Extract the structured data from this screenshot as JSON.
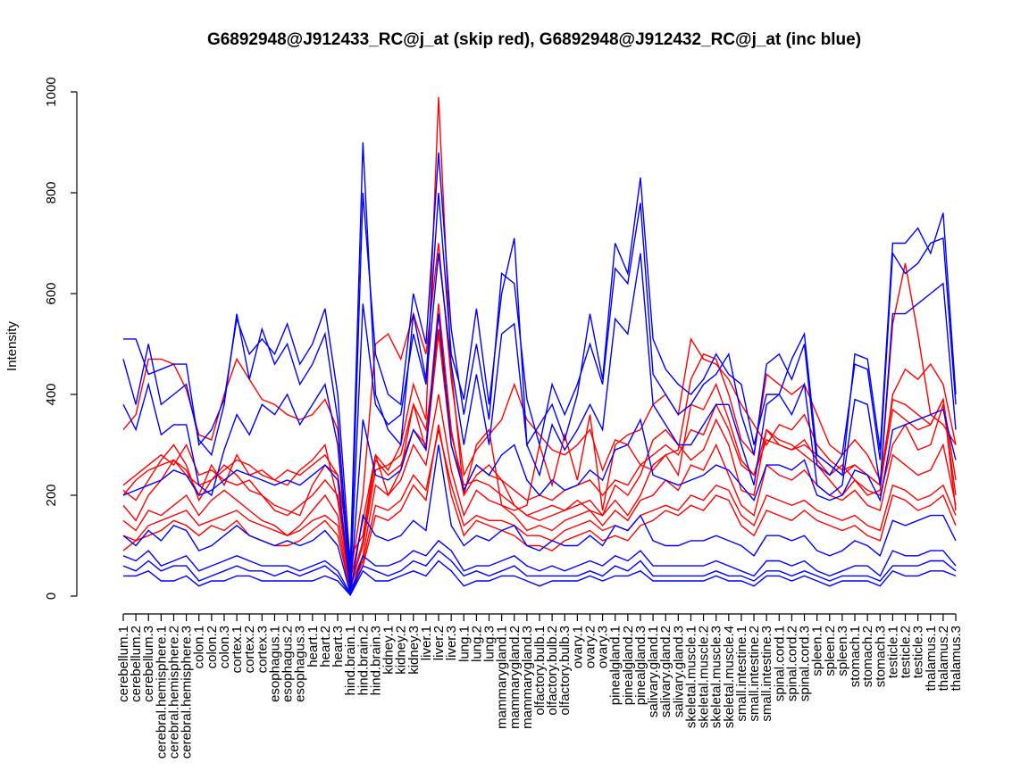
{
  "chart_data": {
    "type": "line",
    "title": "G6892948@J912433_RC@j_at (skip red), G6892948@J912432_RC@j_at (inc blue)",
    "xlabel": "",
    "ylabel": "Intensity",
    "ylim": [
      0,
      1000
    ],
    "yticks": [
      0,
      200,
      400,
      600,
      800,
      1000
    ],
    "grid": false,
    "legend": "none",
    "colors": {
      "skip": "#ff0000",
      "inc": "#0000ff",
      "axis": "#000000"
    },
    "categories": [
      "cerebellum.1",
      "cerebellum.2",
      "cerebellum.3",
      "cerebral.hemisphere.1",
      "cerebral.hemisphere.2",
      "cerebral.hemisphere.3",
      "colon.1",
      "colon.2",
      "colon.3",
      "cortex.1",
      "cortex.2",
      "cortex.3",
      "esophagus.1",
      "esophagus.2",
      "esophagus.3",
      "heart.1",
      "heart.2",
      "heart.3",
      "hind.brain.1",
      "hind.brain.2",
      "hind.brain.3",
      "kidney.1",
      "kidney.2",
      "kidney.3",
      "liver.1",
      "liver.2",
      "liver.3",
      "lung.1",
      "lung.2",
      "lung.3",
      "mammarygland.1",
      "mammarygland.2",
      "mammarygland.3",
      "olfactory.bulb.1",
      "olfactory.bulb.2",
      "olfactory.bulb.3",
      "ovary.1",
      "ovary.2",
      "ovary.3",
      "pinealgland.1",
      "pinealgland.2",
      "pinealgland.3",
      "salivary.gland.1",
      "salivary.gland.2",
      "salivary.gland.3",
      "skeletal.muscle.1",
      "skeletal.muscle.2",
      "skeletal.muscle.3",
      "skeletal.muscle.4",
      "small.intestine.1",
      "small.intestine.2",
      "small.intestine.3",
      "spinal.cord.1",
      "spinal.cord.2",
      "spinal.cord.3",
      "spleen.1",
      "spleen.2",
      "spleen.3",
      "stomach.1",
      "stomach.2",
      "stomach.3",
      "testicle.1",
      "testicle.2",
      "testicle.3",
      "thalamus.1",
      "thalamus.2",
      "thalamus.3"
    ],
    "series": [
      {
        "group": "skip",
        "values": [
          210,
          190,
          230,
          270,
          300,
          260,
          190,
          230,
          260,
          240,
          210,
          200,
          180,
          170,
          160,
          220,
          260,
          240,
          80,
          120,
          280,
          250,
          300,
          420,
          350,
          990,
          450,
          200,
          300,
          330,
          180,
          170,
          180,
          300,
          220,
          320,
          230,
          360,
          170,
          300,
          320,
          330,
          380,
          400,
          360,
          510,
          470,
          460,
          430,
          380,
          340,
          300,
          340,
          330,
          360,
          300,
          270,
          250,
          260,
          240,
          220,
          540,
          660,
          520,
          360,
          340,
          300
        ]
      },
      {
        "group": "skip",
        "values": [
          330,
          360,
          470,
          470,
          460,
          410,
          320,
          310,
          400,
          470,
          430,
          390,
          380,
          360,
          350,
          360,
          390,
          330,
          40,
          200,
          500,
          520,
          470,
          560,
          480,
          700,
          430,
          240,
          290,
          320,
          350,
          420,
          350,
          320,
          290,
          280,
          300,
          330,
          250,
          310,
          300,
          260,
          250,
          280,
          290,
          430,
          480,
          470,
          400,
          310,
          280,
          440,
          420,
          400,
          420,
          360,
          300,
          280,
          310,
          280,
          230,
          390,
          380,
          360,
          340,
          390,
          170
        ]
      },
      {
        "group": "skip",
        "values": [
          220,
          240,
          260,
          280,
          260,
          300,
          240,
          250,
          230,
          220,
          230,
          200,
          170,
          160,
          180,
          200,
          230,
          200,
          30,
          150,
          280,
          200,
          250,
          380,
          330,
          530,
          320,
          220,
          230,
          220,
          200,
          180,
          160,
          170,
          180,
          170,
          190,
          170,
          160,
          190,
          160,
          200,
          260,
          280,
          240,
          380,
          370,
          420,
          350,
          270,
          240,
          330,
          300,
          290,
          310,
          270,
          240,
          260,
          230,
          200,
          210,
          400,
          450,
          430,
          460,
          420,
          300
        ]
      },
      {
        "group": "skip",
        "values": [
          180,
          150,
          200,
          230,
          270,
          250,
          200,
          260,
          220,
          280,
          240,
          250,
          230,
          220,
          250,
          270,
          300,
          190,
          20,
          100,
          250,
          260,
          280,
          380,
          290,
          520,
          300,
          210,
          260,
          240,
          230,
          180,
          160,
          150,
          160,
          170,
          180,
          190,
          160,
          220,
          200,
          240,
          310,
          330,
          300,
          270,
          290,
          350,
          300,
          210,
          200,
          330,
          310,
          300,
          280,
          260,
          230,
          200,
          230,
          210,
          200,
          300,
          340,
          290,
          300,
          380,
          200
        ]
      },
      {
        "group": "skip",
        "values": [
          150,
          130,
          170,
          160,
          180,
          200,
          160,
          190,
          210,
          190,
          170,
          150,
          140,
          120,
          140,
          170,
          200,
          160,
          20,
          80,
          220,
          200,
          230,
          300,
          260,
          400,
          250,
          160,
          210,
          190,
          180,
          160,
          130,
          140,
          130,
          150,
          160,
          170,
          140,
          170,
          150,
          190,
          200,
          230,
          210,
          260,
          250,
          300,
          240,
          180,
          160,
          260,
          240,
          230,
          250,
          220,
          200,
          190,
          210,
          180,
          170,
          280,
          260,
          240,
          250,
          300,
          180
        ]
      },
      {
        "group": "skip",
        "values": [
          90,
          110,
          120,
          130,
          150,
          140,
          120,
          140,
          130,
          150,
          120,
          110,
          100,
          100,
          110,
          130,
          150,
          120,
          10,
          60,
          160,
          150,
          170,
          220,
          190,
          340,
          200,
          120,
          150,
          140,
          130,
          120,
          100,
          100,
          90,
          110,
          120,
          130,
          110,
          120,
          110,
          140,
          150,
          170,
          160,
          180,
          170,
          200,
          190,
          140,
          120,
          170,
          160,
          150,
          170,
          150,
          140,
          130,
          140,
          120,
          110,
          200,
          190,
          170,
          180,
          200,
          140
        ]
      },
      {
        "group": "skip",
        "values": [
          200,
          230,
          250,
          260,
          270,
          240,
          220,
          230,
          250,
          270,
          260,
          240,
          230,
          250,
          240,
          260,
          280,
          240,
          20,
          110,
          270,
          240,
          260,
          330,
          300,
          580,
          330,
          200,
          240,
          260,
          230,
          210,
          190,
          200,
          190,
          210,
          220,
          230,
          200,
          230,
          220,
          260,
          280,
          300,
          280,
          330,
          320,
          380,
          330,
          260,
          240,
          310,
          300,
          290,
          300,
          280,
          260,
          240,
          260,
          240,
          220,
          370,
          350,
          330,
          340,
          390,
          230
        ]
      },
      {
        "group": "skip",
        "values": [
          120,
          110,
          140,
          150,
          160,
          170,
          140,
          150,
          160,
          170,
          150,
          140,
          130,
          120,
          130,
          150,
          160,
          140,
          10,
          70,
          180,
          170,
          190,
          240,
          210,
          330,
          220,
          140,
          160,
          150,
          150,
          140,
          120,
          120,
          110,
          130,
          140,
          150,
          130,
          140,
          130,
          160,
          170,
          180,
          170,
          200,
          190,
          220,
          210,
          160,
          140,
          200,
          190,
          180,
          190,
          170,
          160,
          150,
          160,
          140,
          130,
          220,
          210,
          190,
          200,
          220,
          160
        ]
      },
      {
        "group": "inc",
        "values": [
          510,
          510,
          440,
          450,
          460,
          460,
          300,
          330,
          390,
          550,
          480,
          510,
          480,
          540,
          460,
          500,
          570,
          400,
          60,
          900,
          400,
          330,
          300,
          560,
          430,
          800,
          480,
          390,
          570,
          380,
          600,
          710,
          300,
          340,
          380,
          310,
          400,
          560,
          430,
          700,
          640,
          830,
          510,
          450,
          420,
          400,
          430,
          480,
          440,
          420,
          300,
          400,
          400,
          470,
          520,
          280,
          260,
          240,
          480,
          470,
          290,
          700,
          700,
          730,
          680,
          760,
          400
        ]
      },
      {
        "group": "inc",
        "values": [
          470,
          380,
          500,
          380,
          400,
          420,
          310,
          280,
          380,
          560,
          430,
          530,
          460,
          500,
          420,
          460,
          520,
          350,
          30,
          800,
          480,
          400,
          380,
          600,
          500,
          880,
          530,
          360,
          500,
          350,
          640,
          620,
          390,
          300,
          420,
          360,
          420,
          500,
          420,
          650,
          620,
          780,
          440,
          400,
          360,
          380,
          420,
          440,
          480,
          360,
          280,
          460,
          480,
          430,
          500,
          260,
          240,
          280,
          460,
          450,
          270,
          680,
          640,
          660,
          700,
          710,
          380
        ]
      },
      {
        "group": "inc",
        "values": [
          380,
          330,
          420,
          320,
          340,
          340,
          220,
          200,
          290,
          360,
          320,
          380,
          360,
          400,
          340,
          380,
          420,
          300,
          20,
          580,
          380,
          340,
          360,
          520,
          420,
          680,
          460,
          300,
          440,
          300,
          520,
          540,
          300,
          240,
          340,
          290,
          330,
          380,
          330,
          550,
          520,
          680,
          380,
          340,
          300,
          300,
          340,
          380,
          380,
          300,
          220,
          380,
          400,
          360,
          420,
          220,
          200,
          220,
          390,
          380,
          220,
          560,
          560,
          580,
          600,
          620,
          330
        ]
      },
      {
        "group": "inc",
        "values": [
          200,
          210,
          220,
          230,
          250,
          240,
          200,
          210,
          230,
          250,
          240,
          230,
          220,
          230,
          220,
          240,
          260,
          230,
          10,
          350,
          240,
          230,
          250,
          330,
          290,
          560,
          300,
          210,
          260,
          240,
          280,
          300,
          230,
          200,
          230,
          210,
          220,
          250,
          230,
          290,
          300,
          350,
          240,
          230,
          220,
          230,
          240,
          260,
          250,
          220,
          190,
          260,
          260,
          250,
          270,
          200,
          190,
          200,
          250,
          240,
          190,
          330,
          340,
          350,
          360,
          370,
          270
        ]
      },
      {
        "group": "inc",
        "values": [
          120,
          100,
          130,
          110,
          140,
          130,
          90,
          100,
          120,
          140,
          120,
          110,
          100,
          110,
          100,
          110,
          130,
          100,
          5,
          160,
          120,
          110,
          120,
          150,
          130,
          300,
          140,
          100,
          120,
          110,
          130,
          140,
          100,
          90,
          110,
          100,
          100,
          120,
          100,
          140,
          130,
          160,
          110,
          100,
          100,
          110,
          110,
          120,
          110,
          100,
          80,
          120,
          120,
          110,
          120,
          90,
          80,
          90,
          110,
          100,
          80,
          150,
          140,
          150,
          160,
          160,
          110
        ]
      },
      {
        "group": "inc",
        "values": [
          80,
          70,
          90,
          60,
          70,
          80,
          50,
          60,
          70,
          80,
          70,
          60,
          60,
          60,
          50,
          60,
          70,
          50,
          5,
          80,
          60,
          60,
          70,
          90,
          80,
          110,
          90,
          50,
          60,
          60,
          70,
          80,
          60,
          50,
          60,
          50,
          60,
          70,
          60,
          80,
          70,
          90,
          60,
          60,
          60,
          60,
          60,
          70,
          60,
          50,
          40,
          70,
          70,
          60,
          70,
          50,
          40,
          50,
          60,
          60,
          40,
          90,
          80,
          80,
          90,
          90,
          60
        ]
      },
      {
        "group": "inc",
        "values": [
          40,
          40,
          50,
          30,
          30,
          40,
          20,
          30,
          30,
          40,
          40,
          30,
          30,
          30,
          30,
          30,
          40,
          30,
          2,
          50,
          30,
          30,
          40,
          50,
          40,
          70,
          50,
          20,
          30,
          30,
          40,
          40,
          30,
          20,
          30,
          30,
          30,
          40,
          30,
          40,
          40,
          50,
          30,
          30,
          30,
          30,
          30,
          40,
          30,
          30,
          20,
          40,
          40,
          30,
          40,
          30,
          20,
          30,
          30,
          30,
          20,
          50,
          40,
          40,
          50,
          50,
          40
        ]
      },
      {
        "group": "inc",
        "values": [
          60,
          50,
          70,
          50,
          60,
          60,
          30,
          40,
          50,
          60,
          50,
          50,
          40,
          50,
          40,
          50,
          60,
          40,
          3,
          60,
          50,
          40,
          50,
          70,
          60,
          90,
          70,
          40,
          50,
          40,
          50,
          60,
          40,
          40,
          40,
          40,
          40,
          50,
          40,
          60,
          50,
          70,
          40,
          40,
          40,
          40,
          40,
          50,
          40,
          40,
          30,
          50,
          50,
          40,
          50,
          40,
          30,
          40,
          40,
          40,
          30,
          60,
          60,
          60,
          70,
          70,
          50
        ]
      }
    ]
  }
}
